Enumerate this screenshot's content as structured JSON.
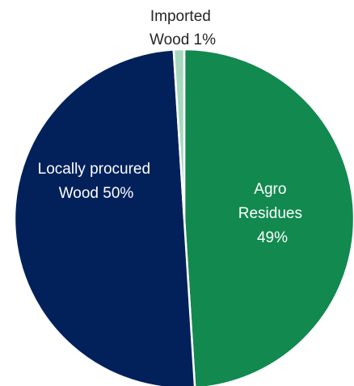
{
  "chart_data": {
    "type": "pie",
    "title": "",
    "slices": [
      {
        "name": "Agro Residues",
        "value": 49,
        "label_lines": [
          "Agro",
          "Residues",
          "49%"
        ],
        "color": "#12894f",
        "label_color": "#ffffff",
        "label_placement": "inside"
      },
      {
        "name": "Locally procured Wood",
        "value": 50,
        "label_lines": [
          "Locally procured",
          "Wood 50%"
        ],
        "color": "#02215b",
        "label_color": "#ffffff",
        "label_placement": "inside"
      },
      {
        "name": "Imported Wood",
        "value": 1,
        "label_lines": [
          "Imported",
          "Wood 1%"
        ],
        "color": "#a8d8be",
        "label_color": "#262626",
        "label_placement": "outside-top"
      }
    ],
    "start": "12 o'clock",
    "direction": "clockwise",
    "legend": "none"
  }
}
